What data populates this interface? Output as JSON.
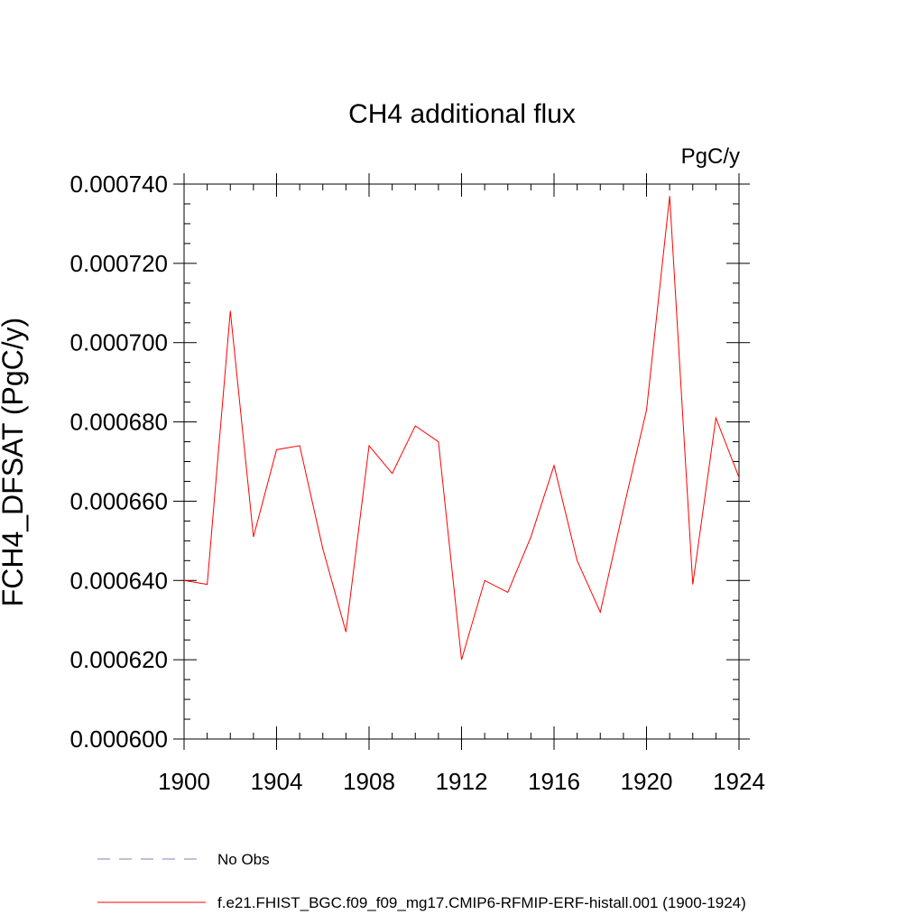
{
  "chart_data": {
    "type": "line",
    "title": "CH4 additional flux",
    "units_label": "PgC/y",
    "xlabel": "",
    "ylabel": "FCH4_DFSAT  (PgC/y)",
    "xlim": [
      1900,
      1924
    ],
    "ylim": [
      0.0006,
      0.00074
    ],
    "x_ticks": [
      1900,
      1904,
      1908,
      1912,
      1916,
      1920,
      1924
    ],
    "x_tick_labels": [
      "1900",
      "1904",
      "1908",
      "1912",
      "1916",
      "1920",
      "1924"
    ],
    "y_ticks": [
      0.0006,
      0.00062,
      0.00064,
      0.00066,
      0.00068,
      0.0007,
      0.00072,
      0.00074
    ],
    "y_tick_labels": [
      "0.000600",
      "0.000620",
      "0.000640",
      "0.000660",
      "0.000680",
      "0.000700",
      "0.000720",
      "0.000740"
    ],
    "grid": false,
    "legend_position": "bottom",
    "series": [
      {
        "name": "f.e21.FHIST_BGC.f09_f09_mg17.CMIP6-RFMIP-ERF-histall.001 (1900-1924)",
        "color": "#ff0000",
        "style": "solid",
        "x": [
          1900,
          1901,
          1902,
          1903,
          1904,
          1905,
          1906,
          1907,
          1908,
          1909,
          1910,
          1911,
          1912,
          1913,
          1914,
          1915,
          1916,
          1917,
          1918,
          1919,
          1920,
          1921,
          1922,
          1923,
          1924
        ],
        "y": [
          0.00064,
          0.000639,
          0.000708,
          0.000651,
          0.000673,
          0.000674,
          0.000648,
          0.000627,
          0.000674,
          0.000667,
          0.000679,
          0.000675,
          0.00062,
          0.00064,
          0.000637,
          0.000651,
          0.000669,
          0.000645,
          0.000632,
          0.000658,
          0.000683,
          0.000737,
          0.000639,
          0.000681,
          0.000666
        ]
      }
    ],
    "legend": [
      {
        "label": "No Obs",
        "color": "#8080c0",
        "style": "dashed"
      },
      {
        "label": "f.e21.FHIST_BGC.f09_f09_mg17.CMIP6-RFMIP-ERF-histall.001 (1900-1924)",
        "color": "#ff0000",
        "style": "solid"
      }
    ]
  }
}
